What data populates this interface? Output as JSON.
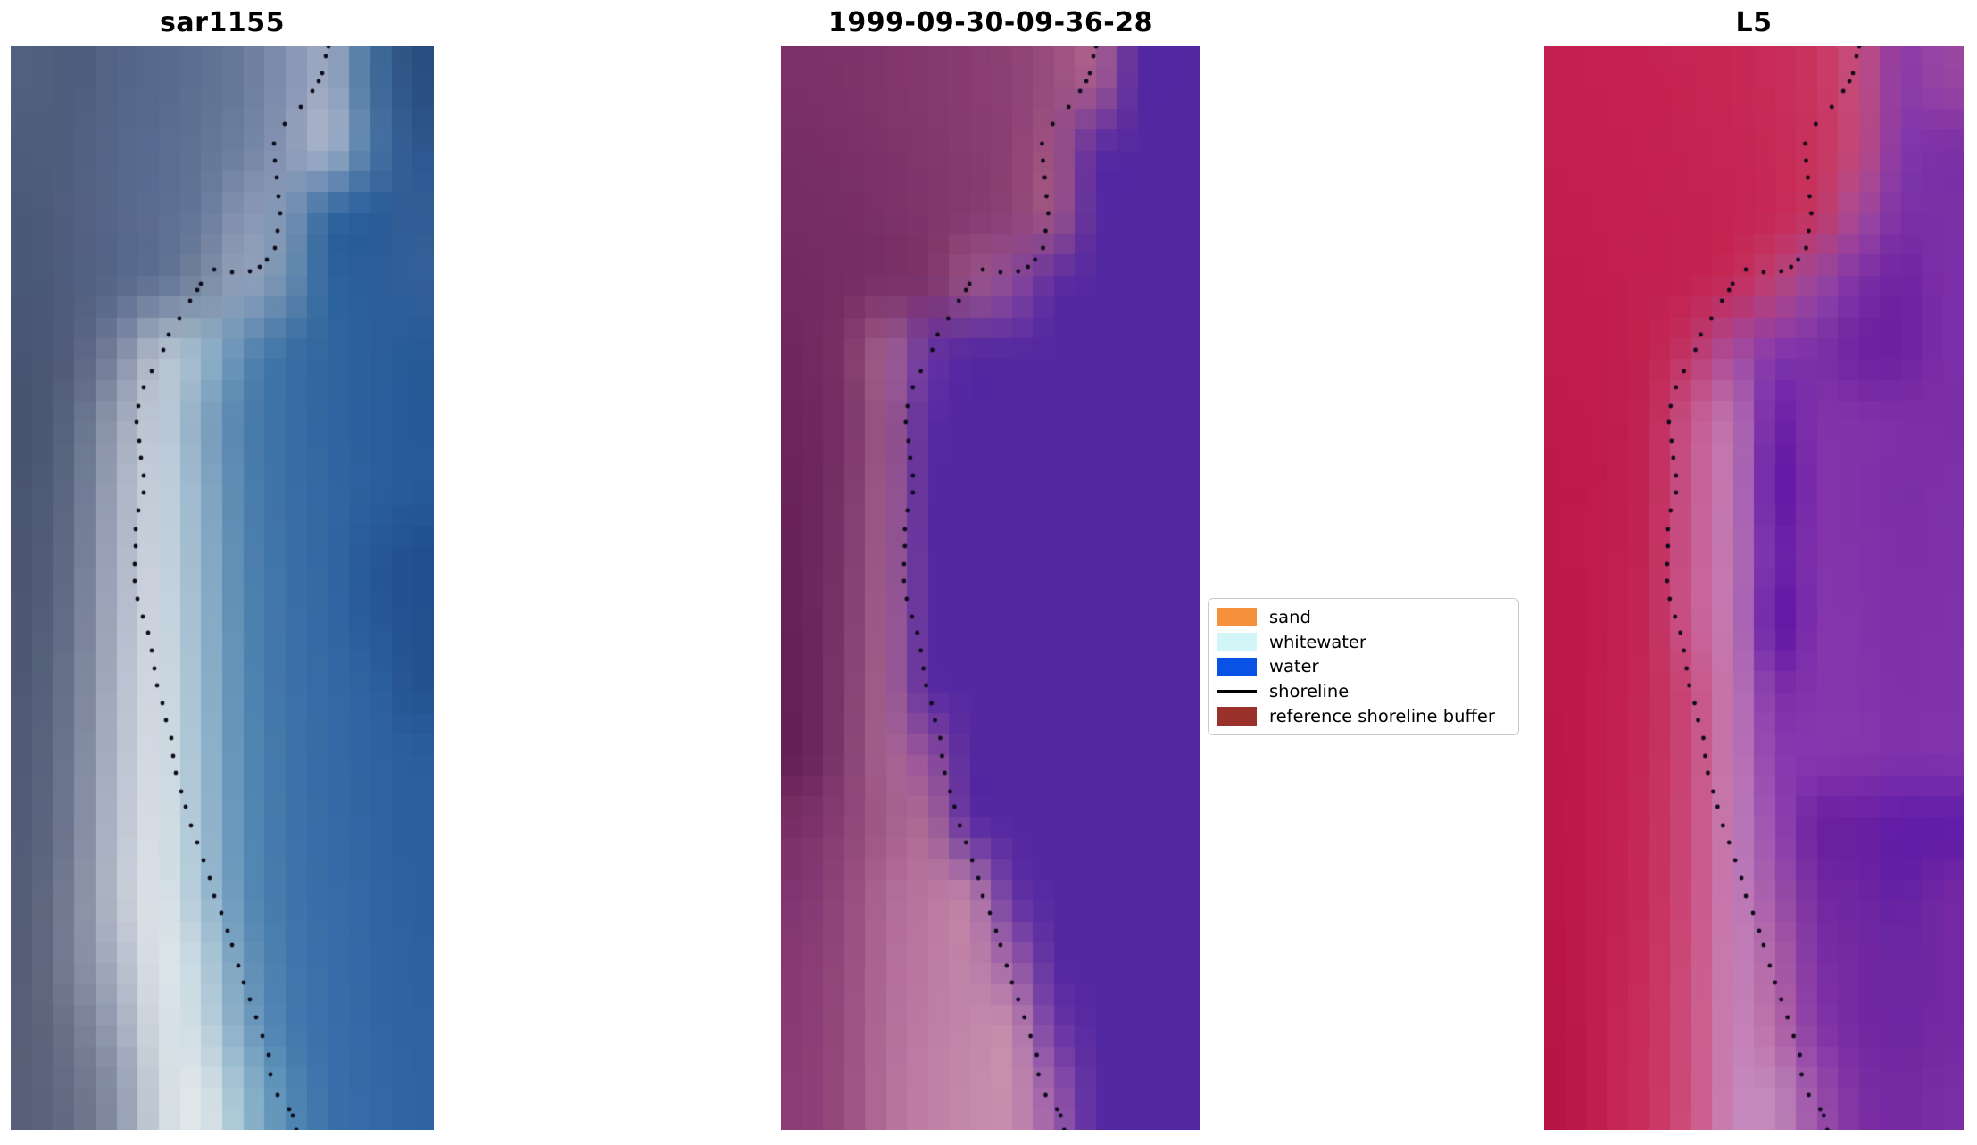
{
  "chart_data": {
    "type": "image-panels",
    "description": "Three co-registered coastal satellite image tiles with a dotted reference shoreline overlay and a classification legend",
    "background_color": "#ffffff",
    "title_color": "#000000",
    "panels": [
      {
        "title": "sar1155",
        "grid_cols": 10,
        "grid_rows": 16,
        "grid": [
          "50607F 4D5C7B 546589 58698E 5E7193 697B9C 8391B1 9FABC4 45719F 2B4F80",
          "4E5D7C 505F7E 56678C 596B90 617494 6F81A1 8997B5 ADB8CC 4E7AA8 2E5890",
          "4A5978 535F80 57688C 5C6E92 65789A 8A97B4 7F97B4 2F659E 2A5C99 315D95",
          "495877 505E7D 55668A 5F7194 76879F 96A3BC 6F8FB0 2F669F 2B5D9A 33609A",
          "495572 555F7D 7A84A0 B8C0CE 9DB9CC 5E8BB4 3A6FA3 30669E 2C609C 265A96",
          "48536F 5D6883 97A0B4 C5CEDA 87A8C2 4D7FAC 3A6FA3 2F66A0 2A5F9D 255A99",
          "4A556F 626D88 A2ABBE CBD4DE 8FB0C8 4F82AE 3B70A4 3067A1 2B609E 265B9A",
          "4C5670 67718C A8B0C2 CED6E0 93B4CA 5184B0 3C71A5 3168A2 27589A 224F90",
          "4E5872 6B758F ACB4C6 D2DAE2 97B7CC 5386B1 3D72A6 3269A3 28599B 23508F",
          "505A74 6F7992 B0B8C9 D5DDE4 9BBACE 5588B3 3E73A7 336AA4 2E63A1 245290",
          "525C76 737D95 B4BCCC D8E0E6 9FBDD0 578AB4 3F74A8 346BA5 2F64A2 2A5F9E",
          "545D77 777F97 B8C0CE DBE2E8 A3C0D2 598CB6 4075A9 356CA6 3065A3 2B609F",
          "565F78 7B8399 BCC3D0 DEE5EA A7C3D4 5B8EB7 4176AA 366DA7 3166A4 2C61A0",
          "575F78 7E859B AEB6C6 E0E6EA BDD3DE 6B97B9 4379AC 376EA8 3267A5 2D62A1",
          "585F77 70788F 9AA3B7 D9E0E6 C9DAE2 7BA4C2 467CAE 386FA9 3368A6 2E63A2",
          "5A5F79 666E86 8A93A9 CED8DF E2E8EB 98BCCE 548BB4 3A71AA 3469A7 2F64A3"
        ]
      },
      {
        "title": "1999-09-30-09-36-28",
        "grid_cols": 10,
        "grid_rows": 16,
        "grid": [
          "7B3068 7D3269 81356B 85386E 893C71 8E4175 9A4E80 AA5F8D 5528A1 5428A0",
          "782E66 7A3067 7E3369 82366C 873B70 8C3F74 A05483 5B2CA2 5428A0 5428A0",
          "752C63 772E65 7B3168 7F356B 843970 8E4376 A25786 5529A1 5428A0 5428A0",
          "722A61 742C62 783066 7D3369 9B5586 8D4B9B 5B2CA1 5428A0 5428A0 5428A0",
          "6F285E 7A3468 A5638F 6A35A2 5428A0 5428A0 5428A0 5428A0 5428A0 5428A0",
          "6C265C 763067 9D5A88 5B2BA1 5428A0 5428A0 5428A0 5428A0 5428A0 5428A0",
          "6A245A 783369 A05D8B 5729A1 5428A0 5428A0 5428A0 5428A0 5428A0 5428A0",
          "682359 7A366B A25F8D 5729A1 5428A0 5428A0 5428A0 5428A0 5428A0 5428A0",
          "672358 7C386D A4618F 582AA1 5428A0 5428A0 5428A0 5428A0 5428A0 5428A0",
          "662257 7E3A6F A66390 5A2BA1 5428A0 5428A0 5428A0 5428A0 5428A0 5428A0",
          "652156 803C70 A86591 94519B 5428A0 5428A0 5428A0 5428A0 5428A0 5428A0",
          "7A3066 8A4076 A25E8A AE6B95 5C2DA2 5428A0 5428A0 5428A0 5428A0 5428A0",
          "823570 93477B AE6A95 B9779F BE81A6 6232A4 5428A0 5428A0 5428A0 5428A0",
          "883973 95497C B06C98 BB7AA2 C085A9 9C5FA7 5529A1 5428A0 5428A0 5428A0",
          "8A3B74 974B7D B26E99 BD7DA3 C287AA C58BAC 7038A6 5428A0 5428A0 5428A0",
          "8C3C75 984C7E B4709A BF80A5 C489AB C78DAE 9A5CA8 5629A2 5428A0 5428A0"
        ]
      },
      {
        "title": "L5",
        "grid_cols": 10,
        "grid_rows": 16,
        "grid": [
          "C32050 C42050 C52251 C62452 C72754 C82C58 C93661 C44E7E 8A3AA8 9946A2",
          "C21F4F C3204F C42150 C52351 C62553 C72A56 C8335E C14B7C 8338AA 7C30A6",
          "C11E4E C21F4F C3204F C42250 C52452 C62855 C53762 A54C9C 7C30A6 7C30A6",
          "C01D4D C11E4E C2204F C32251 C42B58 BB4479 964AA2 7C30A6 6E22A0 7C2FA8",
          "BF1C4C C01D4D C2234F C03766 A74E9E 8438AC 7C30A6 6E22A0 6C20A0 7C2FA8",
          "BE1B4B BF1C4C C12553 C5568D BD76B2 6B1EA6 8233AA 8132A9 7E30A8 7C2EA6",
          "BD1A4A BF1C4C C22754 C65890 C07BB5 5E14A6 8233AA 8132A9 7B2EA7 7D30A8",
          "BD1A4A C01D4C C32855 C75991 C17CB6 6820A8 8334AB 8233AA 7C2FA8 7E31A9",
          "BC194A C01D4C C32956 C85A92 C17CB6 5C12A4 8435AC 8334AB 7D30A9 7F32AA",
          "BC1949 C11E4D C42A57 C74B7B C27DB7 7C2EA8 8536AD 8435AC 7E31AA 8033AB",
          "BB1849 C11E4D C52B58 C84C7C C27EB7 8B3BAE 8637AE 8536AD 7F32AB 8134AC",
          "BB1848 C21F4E C62C59 C94D7D C380B8 9348B0 6A1FA0 6A1FA0 5F1BA8 5F1CA8",
          "BA1748 C2204E C72D5A CA4E7E C481B9 A055A8 742AA2 6F25A1 6321A4 7428A2",
          "B91647 C2214F C82E5B CB507F C583BA AF62A4 7C30A4 7428A2 6C26A0 7428A2",
          "B81646 C32250 C92F5C CC5180 C685BB B86BA6 8438A8 7428A2 7026A2 7428A2",
          "B71545 C32351 CA305D CD5281 C786BC C088B8 9A50A8 7C30A4 7428A2 7A2EA6"
        ]
      }
    ],
    "shoreline": {
      "color": "#0d0b1a",
      "dot_radius": 2.4,
      "ref_width": 474,
      "ref_height": 1214,
      "points": [
        [
          356,
          0
        ],
        [
          353,
          11
        ],
        [
          349,
          30
        ],
        [
          345,
          39
        ],
        [
          338,
          50
        ],
        [
          325,
          68
        ],
        [
          307,
          87
        ],
        [
          295,
          109
        ],
        [
          296,
          128
        ],
        [
          298,
          147
        ],
        [
          300,
          168
        ],
        [
          302,
          187
        ],
        [
          299,
          207
        ],
        [
          296,
          226
        ],
        [
          287,
          239
        ],
        [
          279,
          247
        ],
        [
          268,
          252
        ],
        [
          248,
          253
        ],
        [
          228,
          250
        ],
        [
          213,
          266
        ],
        [
          209,
          273
        ],
        [
          201,
          285
        ],
        [
          189,
          305
        ],
        [
          177,
          323
        ],
        [
          171,
          340
        ],
        [
          158,
          364
        ],
        [
          149,
          382
        ],
        [
          143,
          403
        ],
        [
          141,
          421
        ],
        [
          144,
          442
        ],
        [
          146,
          461
        ],
        [
          149,
          481
        ],
        [
          149,
          500
        ],
        [
          143,
          520
        ],
        [
          140,
          541
        ],
        [
          140,
          560
        ],
        [
          139,
          580
        ],
        [
          139,
          599
        ],
        [
          142,
          619
        ],
        [
          148,
          639
        ],
        [
          154,
          657
        ],
        [
          158,
          677
        ],
        [
          161,
          697
        ],
        [
          164,
          716
        ],
        [
          170,
          736
        ],
        [
          174,
          755
        ],
        [
          180,
          775
        ],
        [
          182,
          795
        ],
        [
          185,
          814
        ],
        [
          191,
          835
        ],
        [
          196,
          852
        ],
        [
          202,
          873
        ],
        [
          209,
          892
        ],
        [
          216,
          912
        ],
        [
          223,
          932
        ],
        [
          228,
          952
        ],
        [
          236,
          971
        ],
        [
          243,
          991
        ],
        [
          248,
          1007
        ],
        [
          255,
          1030
        ],
        [
          261,
          1049
        ],
        [
          268,
          1068
        ],
        [
          275,
          1088
        ],
        [
          282,
          1109
        ],
        [
          289,
          1130
        ],
        [
          291,
          1152
        ],
        [
          299,
          1175
        ],
        [
          312,
          1191
        ],
        [
          316,
          1198
        ],
        [
          320,
          1214
        ]
      ]
    },
    "legend": {
      "position": "right-of-middle-panel",
      "items": [
        {
          "label": "sand",
          "color": "#F5913D",
          "type": "patch"
        },
        {
          "label": "whitewater",
          "color": "#D2F5F8",
          "type": "patch"
        },
        {
          "label": "water",
          "color": "#0853E6",
          "type": "patch"
        },
        {
          "label": "shoreline",
          "color": "#000000",
          "type": "line"
        },
        {
          "label": "reference shoreline buffer",
          "color": "#9A312B",
          "type": "patch"
        }
      ]
    }
  }
}
